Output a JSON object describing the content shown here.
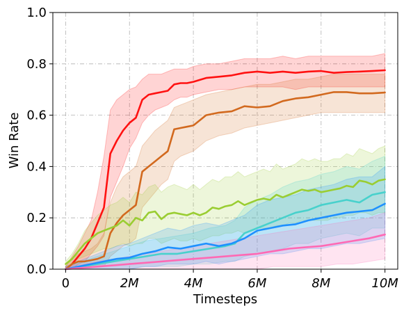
{
  "chart_data": {
    "type": "line",
    "title": "",
    "xlabel": "Timesteps",
    "ylabel": "Win Rate",
    "xlim": [
      -0.4,
      10.4
    ],
    "ylim": [
      0.0,
      1.0
    ],
    "x_unit": "M",
    "grid": true,
    "legend": "none",
    "xticks": [
      0,
      2,
      4,
      6,
      8,
      10
    ],
    "xtick_labels": [
      "0",
      "2M",
      "4M",
      "6M",
      "8M",
      "10M"
    ],
    "yticks": [
      0.0,
      0.2,
      0.4,
      0.6,
      0.8,
      1.0
    ],
    "ytick_labels": [
      "0.0",
      "0.2",
      "0.4",
      "0.6",
      "0.8",
      "1.0"
    ],
    "series": [
      {
        "color": "#ff1111",
        "x": [
          0,
          0.2,
          0.4,
          0.6,
          0.8,
          1.0,
          1.2,
          1.4,
          1.6,
          1.8,
          2.0,
          2.2,
          2.4,
          2.6,
          2.8,
          3.0,
          3.2,
          3.4,
          3.6,
          3.8,
          4.0,
          4.4,
          4.8,
          5.2,
          5.6,
          6.0,
          6.4,
          6.8,
          7.2,
          7.6,
          8.0,
          8.4,
          8.8,
          9.2,
          9.6,
          10.0
        ],
        "values": [
          0.0,
          0.02,
          0.05,
          0.08,
          0.12,
          0.18,
          0.24,
          0.45,
          0.5,
          0.54,
          0.57,
          0.59,
          0.66,
          0.68,
          0.685,
          0.69,
          0.695,
          0.72,
          0.725,
          0.725,
          0.73,
          0.745,
          0.75,
          0.755,
          0.765,
          0.77,
          0.765,
          0.77,
          0.765,
          0.77,
          0.772,
          0.765,
          0.768,
          0.77,
          0.772,
          0.775
        ],
        "lower": [
          0.0,
          0.0,
          0.02,
          0.03,
          0.06,
          0.09,
          0.13,
          0.28,
          0.34,
          0.4,
          0.47,
          0.51,
          0.57,
          0.6,
          0.62,
          0.63,
          0.64,
          0.66,
          0.67,
          0.67,
          0.68,
          0.69,
          0.7,
          0.7,
          0.71,
          0.71,
          0.71,
          0.71,
          0.7,
          0.71,
          0.71,
          0.71,
          0.71,
          0.71,
          0.71,
          0.71
        ],
        "upper": [
          0.01,
          0.05,
          0.09,
          0.14,
          0.19,
          0.3,
          0.44,
          0.62,
          0.66,
          0.68,
          0.7,
          0.71,
          0.74,
          0.76,
          0.76,
          0.76,
          0.77,
          0.78,
          0.78,
          0.78,
          0.79,
          0.8,
          0.8,
          0.81,
          0.82,
          0.82,
          0.82,
          0.83,
          0.82,
          0.83,
          0.83,
          0.83,
          0.83,
          0.83,
          0.83,
          0.84
        ]
      },
      {
        "color": "#d2691e",
        "x": [
          0,
          0.2,
          0.4,
          0.6,
          0.8,
          1.0,
          1.2,
          1.4,
          1.6,
          1.8,
          2.0,
          2.2,
          2.4,
          2.6,
          2.8,
          3.0,
          3.2,
          3.4,
          3.6,
          3.8,
          4.0,
          4.4,
          4.8,
          5.2,
          5.6,
          6.0,
          6.4,
          6.8,
          7.2,
          7.6,
          8.0,
          8.4,
          8.8,
          9.2,
          9.6,
          10.0
        ],
        "values": [
          0.0,
          0.02,
          0.03,
          0.03,
          0.035,
          0.04,
          0.05,
          0.14,
          0.18,
          0.21,
          0.23,
          0.25,
          0.38,
          0.4,
          0.42,
          0.44,
          0.46,
          0.545,
          0.55,
          0.555,
          0.56,
          0.6,
          0.61,
          0.615,
          0.635,
          0.63,
          0.635,
          0.655,
          0.665,
          0.67,
          0.68,
          0.69,
          0.69,
          0.685,
          0.685,
          0.688
        ],
        "lower": [
          0.0,
          0.0,
          0.01,
          0.01,
          0.01,
          0.01,
          0.01,
          0.05,
          0.07,
          0.09,
          0.1,
          0.12,
          0.24,
          0.27,
          0.3,
          0.33,
          0.35,
          0.42,
          0.44,
          0.45,
          0.46,
          0.5,
          0.52,
          0.53,
          0.55,
          0.56,
          0.57,
          0.58,
          0.59,
          0.6,
          0.61,
          0.61,
          0.61,
          0.61,
          0.61,
          0.61
        ],
        "upper": [
          0.01,
          0.04,
          0.06,
          0.07,
          0.08,
          0.1,
          0.14,
          0.26,
          0.32,
          0.36,
          0.38,
          0.4,
          0.48,
          0.51,
          0.54,
          0.56,
          0.58,
          0.63,
          0.64,
          0.65,
          0.66,
          0.68,
          0.69,
          0.7,
          0.71,
          0.72,
          0.72,
          0.73,
          0.74,
          0.74,
          0.75,
          0.76,
          0.76,
          0.76,
          0.76,
          0.76
        ]
      },
      {
        "color": "#9acd32",
        "x": [
          0,
          0.2,
          0.4,
          0.6,
          0.8,
          1.0,
          1.2,
          1.4,
          1.6,
          1.8,
          2.0,
          2.2,
          2.4,
          2.6,
          2.8,
          3.0,
          3.2,
          3.4,
          3.6,
          3.8,
          4.0,
          4.2,
          4.4,
          4.6,
          4.8,
          5.0,
          5.2,
          5.4,
          5.6,
          5.8,
          6.0,
          6.2,
          6.4,
          6.6,
          6.8,
          7.0,
          7.2,
          7.4,
          7.6,
          7.8,
          8.0,
          8.2,
          8.4,
          8.6,
          8.8,
          9.0,
          9.2,
          9.4,
          9.6,
          9.8,
          10.0
        ],
        "values": [
          0.02,
          0.04,
          0.07,
          0.1,
          0.12,
          0.14,
          0.15,
          0.16,
          0.17,
          0.19,
          0.17,
          0.2,
          0.19,
          0.22,
          0.225,
          0.195,
          0.215,
          0.22,
          0.215,
          0.21,
          0.22,
          0.21,
          0.22,
          0.24,
          0.235,
          0.245,
          0.25,
          0.265,
          0.25,
          0.26,
          0.27,
          0.275,
          0.27,
          0.29,
          0.28,
          0.29,
          0.3,
          0.31,
          0.305,
          0.31,
          0.3,
          0.305,
          0.31,
          0.315,
          0.325,
          0.32,
          0.345,
          0.34,
          0.33,
          0.345,
          0.35
        ],
        "lower": [
          0.01,
          0.02,
          0.04,
          0.05,
          0.06,
          0.07,
          0.08,
          0.08,
          0.09,
          0.1,
          0.09,
          0.1,
          0.1,
          0.12,
          0.12,
          0.1,
          0.11,
          0.12,
          0.11,
          0.11,
          0.12,
          0.11,
          0.12,
          0.13,
          0.13,
          0.14,
          0.14,
          0.15,
          0.14,
          0.15,
          0.16,
          0.16,
          0.16,
          0.17,
          0.17,
          0.18,
          0.18,
          0.19,
          0.19,
          0.19,
          0.19,
          0.19,
          0.2,
          0.2,
          0.21,
          0.21,
          0.22,
          0.22,
          0.21,
          0.22,
          0.22
        ],
        "upper": [
          0.03,
          0.06,
          0.1,
          0.15,
          0.18,
          0.21,
          0.23,
          0.25,
          0.26,
          0.28,
          0.26,
          0.3,
          0.29,
          0.32,
          0.33,
          0.3,
          0.32,
          0.33,
          0.32,
          0.31,
          0.33,
          0.31,
          0.33,
          0.35,
          0.34,
          0.36,
          0.36,
          0.38,
          0.36,
          0.37,
          0.38,
          0.39,
          0.38,
          0.41,
          0.39,
          0.4,
          0.41,
          0.43,
          0.42,
          0.43,
          0.42,
          0.42,
          0.43,
          0.43,
          0.45,
          0.44,
          0.47,
          0.46,
          0.45,
          0.47,
          0.48
        ]
      },
      {
        "color": "#48d1cc",
        "x": [
          0,
          0.5,
          1.0,
          1.5,
          2.0,
          2.5,
          3.0,
          3.5,
          4.0,
          4.5,
          5.0,
          5.3,
          5.6,
          6.0,
          6.4,
          6.8,
          7.2,
          7.6,
          8.0,
          8.4,
          8.8,
          9.2,
          9.6,
          10.0
        ],
        "values": [
          0.0,
          0.01,
          0.02,
          0.03,
          0.04,
          0.05,
          0.06,
          0.06,
          0.07,
          0.08,
          0.09,
          0.1,
          0.14,
          0.16,
          0.18,
          0.2,
          0.22,
          0.23,
          0.25,
          0.26,
          0.27,
          0.26,
          0.29,
          0.3
        ],
        "lower": [
          0.0,
          0.0,
          0.0,
          0.0,
          0.0,
          0.01,
          0.01,
          0.01,
          0.02,
          0.02,
          0.03,
          0.03,
          0.05,
          0.06,
          0.07,
          0.08,
          0.1,
          0.1,
          0.12,
          0.13,
          0.14,
          0.13,
          0.16,
          0.16
        ],
        "upper": [
          0.01,
          0.03,
          0.05,
          0.07,
          0.09,
          0.11,
          0.12,
          0.13,
          0.14,
          0.16,
          0.17,
          0.19,
          0.24,
          0.27,
          0.29,
          0.32,
          0.34,
          0.35,
          0.37,
          0.38,
          0.4,
          0.39,
          0.42,
          0.44
        ]
      },
      {
        "color": "#1e90ff",
        "x": [
          0,
          0.4,
          0.8,
          1.2,
          1.6,
          2.0,
          2.4,
          2.8,
          3.2,
          3.6,
          4.0,
          4.4,
          4.8,
          5.2,
          5.6,
          6.0,
          6.4,
          6.8,
          7.2,
          7.6,
          8.0,
          8.4,
          8.8,
          9.2,
          9.6,
          10.0
        ],
        "values": [
          0.0,
          0.01,
          0.02,
          0.03,
          0.04,
          0.045,
          0.06,
          0.07,
          0.085,
          0.08,
          0.09,
          0.1,
          0.09,
          0.1,
          0.12,
          0.15,
          0.16,
          0.17,
          0.175,
          0.19,
          0.2,
          0.21,
          0.22,
          0.225,
          0.23,
          0.255
        ],
        "lower": [
          0.0,
          0.0,
          0.0,
          0.0,
          0.0,
          0.0,
          0.01,
          0.01,
          0.02,
          0.02,
          0.02,
          0.03,
          0.02,
          0.03,
          0.04,
          0.05,
          0.06,
          0.06,
          0.07,
          0.08,
          0.08,
          0.09,
          0.1,
          0.1,
          0.11,
          0.12
        ],
        "upper": [
          0.01,
          0.03,
          0.05,
          0.07,
          0.09,
          0.1,
          0.12,
          0.14,
          0.16,
          0.15,
          0.17,
          0.18,
          0.17,
          0.19,
          0.21,
          0.25,
          0.27,
          0.28,
          0.29,
          0.31,
          0.32,
          0.33,
          0.35,
          0.36,
          0.36,
          0.4
        ]
      },
      {
        "color": "#ff69b4",
        "x": [
          0,
          0.5,
          1.0,
          1.5,
          2.0,
          2.5,
          3.0,
          3.5,
          4.0,
          4.5,
          5.0,
          5.5,
          6.0,
          6.5,
          7.0,
          7.5,
          8.0,
          8.5,
          9.0,
          9.5,
          10.0
        ],
        "values": [
          0.0,
          0.005,
          0.01,
          0.015,
          0.02,
          0.025,
          0.03,
          0.035,
          0.04,
          0.045,
          0.05,
          0.055,
          0.06,
          0.07,
          0.08,
          0.085,
          0.09,
          0.1,
          0.11,
          0.12,
          0.135
        ],
        "lower": [
          0.0,
          0.0,
          0.0,
          0.0,
          0.0,
          0.0,
          0.0,
          0.0,
          0.0,
          0.0,
          0.0,
          0.0,
          0.0,
          0.01,
          0.01,
          0.01,
          0.01,
          0.02,
          0.02,
          0.03,
          0.04
        ],
        "upper": [
          0.01,
          0.02,
          0.03,
          0.04,
          0.05,
          0.06,
          0.07,
          0.08,
          0.09,
          0.1,
          0.11,
          0.12,
          0.13,
          0.14,
          0.15,
          0.16,
          0.17,
          0.18,
          0.19,
          0.2,
          0.22
        ]
      }
    ]
  }
}
